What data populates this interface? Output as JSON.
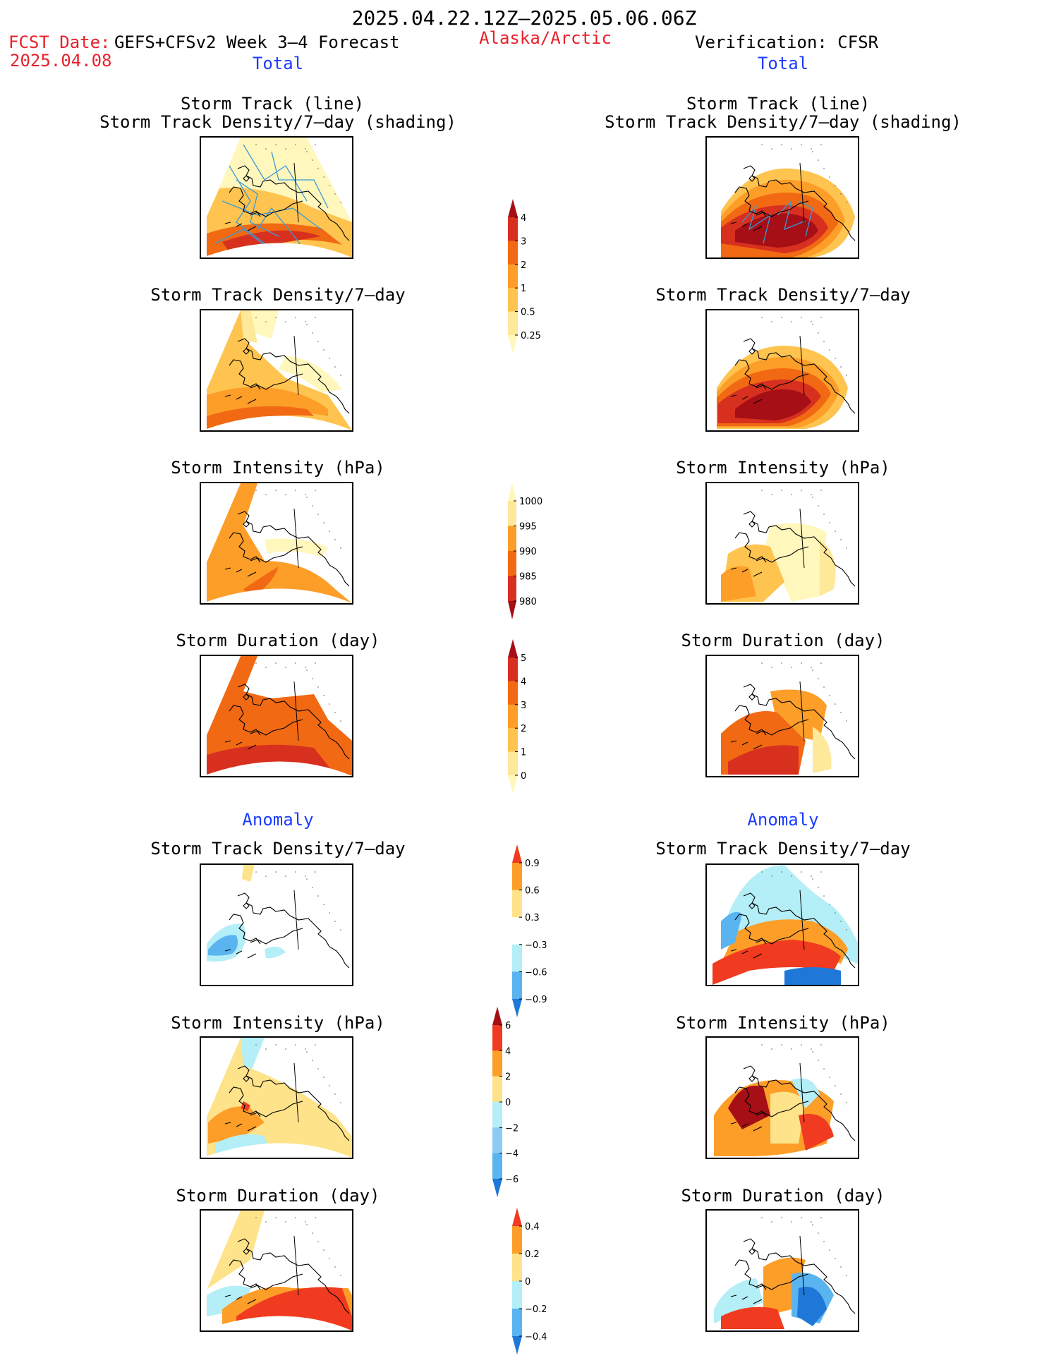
{
  "header": {
    "period": "2025.04.22.12Z–2025.05.06.06Z",
    "fcst_label": "FCST Date:",
    "fcst_model": "GEFS+CFSv2 Week 3–4 Forecast",
    "fcst_date": "2025.04.08",
    "region": "Alaska/Arctic",
    "verification": "Verification: CFSR",
    "total_left": "Total",
    "total_right": "Total",
    "anomaly_left": "Anomaly",
    "anomaly_right": "Anomaly"
  },
  "panel_titles": {
    "track_line": "Storm Track (line)",
    "track_shading": "Storm Track Density/7–day (shading)",
    "density": "Storm Track Density/7–day",
    "intensity": "Storm Intensity (hPa)",
    "duration": "Storm Duration (day)"
  },
  "colorbars": [
    {
      "name": "density-colorbar",
      "labels": [
        "4",
        "3",
        "2",
        "1",
        "0.5",
        "0.25"
      ],
      "colors": [
        "#a50f15",
        "#d7301f",
        "#f16913",
        "#fd9e29",
        "#fec44f",
        "#fee89a",
        "#fff7bc"
      ],
      "order": "dark-top"
    },
    {
      "name": "intensity-colorbar",
      "labels": [
        "1000",
        "995",
        "990",
        "985",
        "980"
      ],
      "colors": [
        "#fff7bc",
        "#fee89a",
        "#fd9e29",
        "#f16913",
        "#d7301f",
        "#a50f15"
      ],
      "order": "light-top"
    },
    {
      "name": "duration-colorbar",
      "labels": [
        "5",
        "4",
        "3",
        "2",
        "1",
        "0"
      ],
      "colors": [
        "#a50f15",
        "#d7301f",
        "#f16913",
        "#fd9e29",
        "#fec44f",
        "#fee89a",
        "#fff7bc"
      ],
      "order": "dark-top"
    },
    {
      "name": "density-anomaly-colorbar",
      "labels": [
        "0.9",
        "0.6",
        "0.3",
        "−0.3",
        "−0.6",
        "−0.9"
      ],
      "colors": [
        "#f03b20",
        "#fd9e29",
        "#fee38b",
        "#ffffff",
        "#b4eef7",
        "#5ab4f0",
        "#1f78d8"
      ],
      "order": "warm-top"
    },
    {
      "name": "intensity-anomaly-colorbar",
      "labels": [
        "6",
        "4",
        "2",
        "0",
        "−2",
        "−4",
        "−6"
      ],
      "colors": [
        "#a50f15",
        "#f03b20",
        "#fd9e29",
        "#fee38b",
        "#b4eef7",
        "#8ccbf5",
        "#5ab4f0",
        "#1f78d8"
      ],
      "order": "warm-top"
    },
    {
      "name": "duration-anomaly-colorbar",
      "labels": [
        "0.4",
        "0.2",
        "0",
        "−0.2",
        "−0.4"
      ],
      "colors": [
        "#f03b20",
        "#fd9e29",
        "#fee38b",
        "#b4eef7",
        "#5ab4f0",
        "#1f78d8"
      ],
      "order": "warm-top"
    }
  ],
  "palette": {
    "c1": "#fff7bc",
    "c2": "#fee89a",
    "c3": "#fec44f",
    "c4": "#fd9e29",
    "c5": "#f16913",
    "c6": "#d7301f",
    "c7": "#a50f15",
    "a_pos1": "#fee38b",
    "a_pos2": "#fd9e29",
    "a_pos3": "#f03b20",
    "a_neg1": "#b4eef7",
    "a_neg2": "#5ab4f0",
    "a_neg3": "#1f78d8",
    "track_line": "#3a9ad9"
  }
}
